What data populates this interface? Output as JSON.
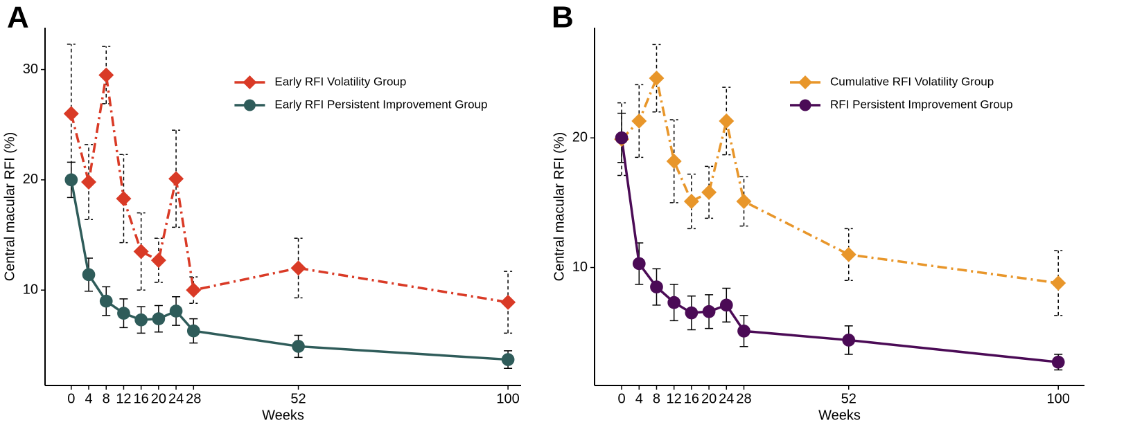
{
  "chart_data": [
    {
      "type": "line",
      "panel_label": "A",
      "x_label": "Weeks",
      "y_label": "Central macular RFI (%)",
      "x": [
        0,
        4,
        8,
        12,
        16,
        20,
        24,
        28,
        52,
        100
      ],
      "xlim": [
        -6,
        103
      ],
      "xticks": [
        0,
        4,
        8,
        12,
        16,
        20,
        24,
        28,
        52,
        100
      ],
      "ylim": [
        1.35,
        33.8
      ],
      "yticks": [
        10,
        20,
        30
      ],
      "legend_position": "top-right",
      "series": [
        {
          "name": "Early RFI Volatility Group",
          "color": "#d93a26",
          "marker": "diamond",
          "line_style": "dashdot",
          "error_style": "dashed",
          "values": [
            26,
            19.8,
            29.5,
            18.3,
            13.5,
            12.7,
            20.1,
            10.0,
            12.0,
            8.9
          ],
          "errors": [
            6.3,
            3.4,
            2.6,
            4.0,
            3.5,
            2.0,
            4.4,
            1.2,
            2.7,
            2.8
          ]
        },
        {
          "name": "Early RFI Persistent Improvement Group",
          "color": "#2f5c5a",
          "marker": "circle",
          "line_style": "solid",
          "error_style": "solid",
          "values": [
            20,
            11.4,
            9.0,
            7.9,
            7.3,
            7.4,
            8.1,
            6.3,
            4.9,
            3.7
          ],
          "errors": [
            1.6,
            1.5,
            1.3,
            1.3,
            1.2,
            1.2,
            1.3,
            1.1,
            1.0,
            0.8
          ]
        }
      ]
    },
    {
      "type": "line",
      "panel_label": "B",
      "x_label": "Weeks",
      "y_label": "Central macular RFI (%)",
      "x": [
        0,
        4,
        8,
        12,
        16,
        20,
        24,
        28,
        52,
        100
      ],
      "xlim": [
        -6.2,
        106
      ],
      "xticks": [
        0,
        4,
        8,
        12,
        16,
        20,
        24,
        28,
        52,
        100
      ],
      "ylim": [
        0.9,
        28.5
      ],
      "yticks": [
        10,
        20
      ],
      "legend_position": "top-right",
      "series": [
        {
          "name": "Cumulative RFI Volatility Group",
          "color": "#e8962a",
          "marker": "diamond",
          "line_style": "dashdot",
          "error_style": "dashed",
          "values": [
            19.9,
            21.3,
            24.6,
            18.2,
            15.1,
            15.8,
            21.3,
            15.1,
            11.0,
            8.8
          ],
          "errors": [
            2.8,
            2.8,
            2.6,
            3.2,
            2.1,
            2.0,
            2.6,
            1.9,
            2.0,
            2.5
          ]
        },
        {
          "name": "RFI Persistent Improvement Group",
          "color": "#4b0b56",
          "marker": "circle",
          "line_style": "solid",
          "error_style": "solid",
          "values": [
            20.0,
            10.3,
            8.5,
            7.3,
            6.5,
            6.6,
            7.1,
            5.1,
            4.4,
            2.7
          ],
          "errors": [
            1.9,
            1.6,
            1.4,
            1.4,
            1.3,
            1.3,
            1.3,
            1.2,
            1.1,
            0.6
          ]
        }
      ]
    }
  ]
}
